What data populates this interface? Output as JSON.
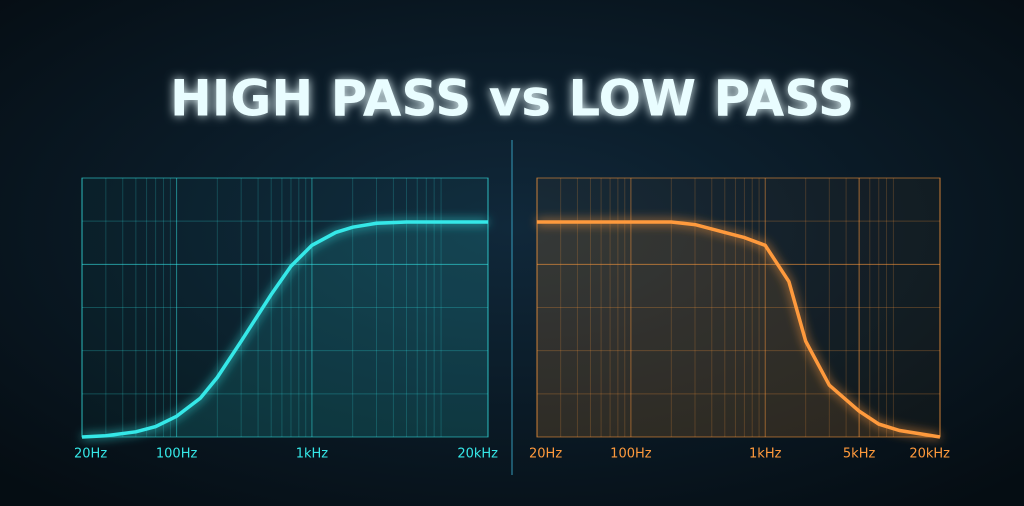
{
  "title": "HIGH PASS vs LOW PASS",
  "chart_data": [
    {
      "type": "line",
      "color": "#35e8e8",
      "xscale": "log",
      "xlim": [
        20,
        20000
      ],
      "ylim": [
        0,
        1
      ],
      "xticks": [
        {
          "value": 20,
          "label": "20Hz"
        },
        {
          "value": 100,
          "label": "100Hz"
        },
        {
          "value": 1000,
          "label": "1kHz"
        },
        {
          "value": 20000,
          "label": "20kHz"
        }
      ],
      "x": [
        20,
        30,
        50,
        70,
        100,
        150,
        200,
        300,
        500,
        700,
        1000,
        1500,
        2000,
        3000,
        5000,
        10000,
        20000
      ],
      "values": [
        0,
        0.005,
        0.02,
        0.04,
        0.08,
        0.15,
        0.23,
        0.37,
        0.55,
        0.66,
        0.74,
        0.79,
        0.81,
        0.825,
        0.83,
        0.83,
        0.83
      ]
    },
    {
      "type": "line",
      "color": "#ff9a3c",
      "xscale": "log",
      "xlim": [
        20,
        20000
      ],
      "ylim": [
        0,
        1
      ],
      "xticks": [
        {
          "value": 20,
          "label": "20Hz"
        },
        {
          "value": 100,
          "label": "100Hz"
        },
        {
          "value": 1000,
          "label": "1kHz"
        },
        {
          "value": 5000,
          "label": "5kHz"
        },
        {
          "value": 20000,
          "label": "20kHz"
        }
      ],
      "x": [
        20,
        50,
        100,
        200,
        300,
        500,
        700,
        1000,
        1500,
        2000,
        3000,
        5000,
        7000,
        10000,
        20000
      ],
      "values": [
        0.83,
        0.83,
        0.83,
        0.83,
        0.82,
        0.79,
        0.77,
        0.74,
        0.6,
        0.37,
        0.2,
        0.1,
        0.05,
        0.025,
        0
      ]
    }
  ]
}
